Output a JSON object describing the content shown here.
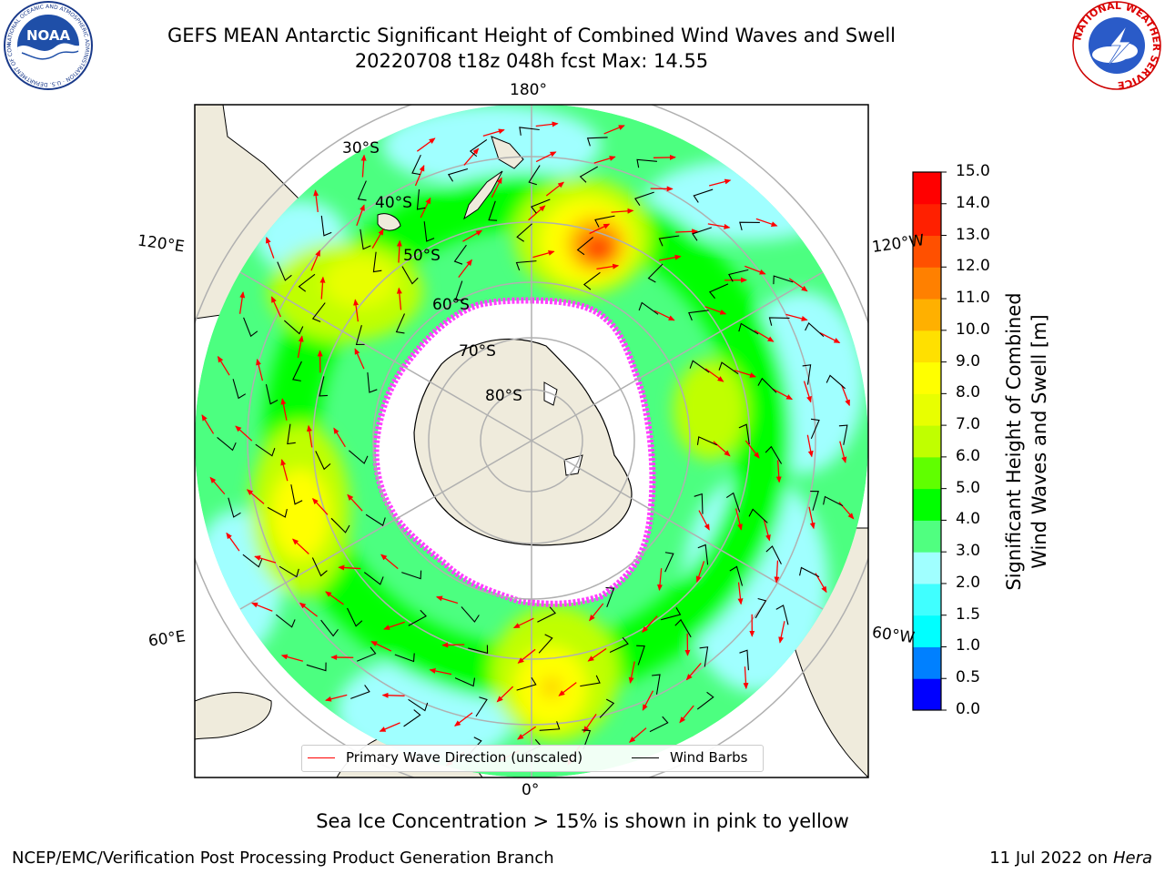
{
  "title": {
    "line1": "GEFS MEAN Antarctic Significant Height of Combined Wind Waves and Swell",
    "line2": "20220708 t18z 048h fcst   Max: 14.55"
  },
  "map": {
    "projection": "south-polar-stereographic",
    "longitude_labels": [
      "180°",
      "120°E",
      "120°W",
      "60°E",
      "60°W",
      "0°"
    ],
    "latitude_labels": [
      "30°S",
      "40°S",
      "50°S",
      "60°S",
      "70°S",
      "80°S"
    ],
    "sea_ice_color": "#ff40ff",
    "land_color": "#efebdc",
    "ocean_base_color": "#4cff80"
  },
  "colorbar": {
    "title_line1": "Significant Height of Combined",
    "title_line2": "Wind Waves and Swell [m]",
    "ticks": [
      "15.0",
      "14.0",
      "13.0",
      "12.0",
      "11.0",
      "10.0",
      "9.0",
      "8.0",
      "7.0",
      "6.0",
      "5.0",
      "4.0",
      "3.0",
      "2.0",
      "1.5",
      "1.0",
      "0.5",
      "0.0"
    ],
    "colors": [
      "#0000ff",
      "#0080ff",
      "#00ffff",
      "#40ffff",
      "#a0ffff",
      "#50ff80",
      "#00ff00",
      "#60ff00",
      "#c0ff00",
      "#e8ff00",
      "#ffff00",
      "#ffe000",
      "#ffb000",
      "#ff8000",
      "#ff5000",
      "#ff2000",
      "#ff0000"
    ]
  },
  "legend": {
    "primary_wave": "Primary Wave Direction (unscaled)",
    "wind_barbs": "Wind Barbs",
    "primary_wave_color": "#ff0000",
    "wind_barbs_color": "#000000"
  },
  "note": "Sea Ice Concentration > 15% is shown in pink to yellow",
  "footer": {
    "left": "NCEP/EMC/Verification Post Processing Product Generation Branch",
    "right_prefix": "11 Jul 2022 on ",
    "right_host": "Hera"
  },
  "logos": {
    "noaa": {
      "text": "NOAA",
      "ring_text": "NATIONAL OCEANIC AND ATMOSPHERIC ADMINISTRATION · U.S. DEPARTMENT OF COMMERCE"
    },
    "nws": {
      "ring_text": "NATIONAL WEATHER SERVICE"
    }
  }
}
